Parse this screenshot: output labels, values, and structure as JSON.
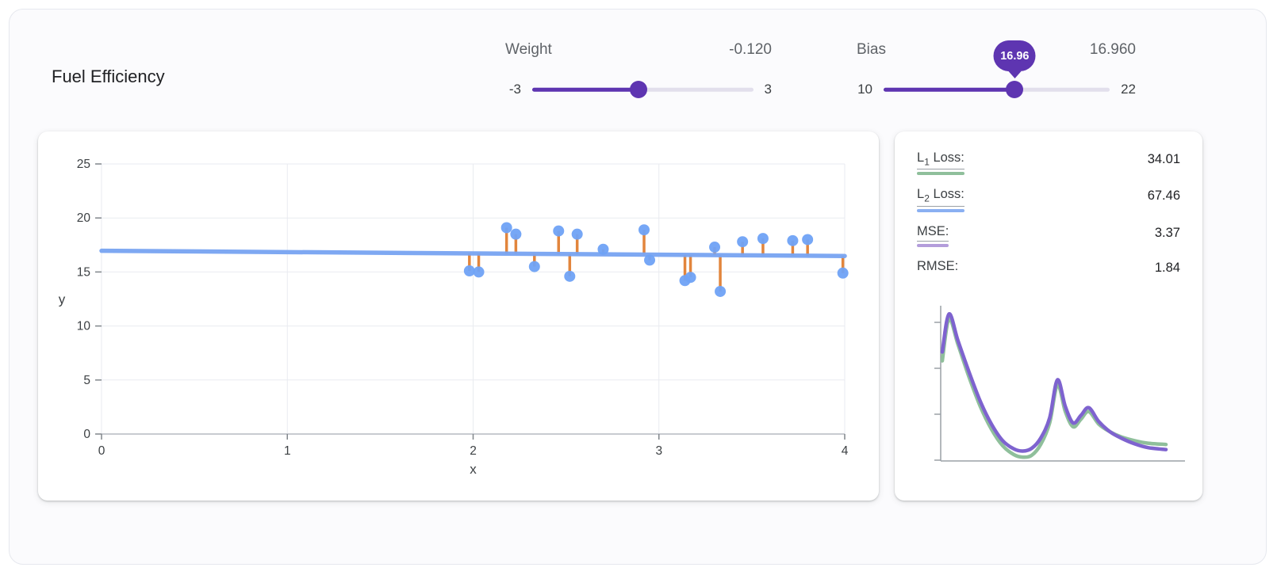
{
  "app": {
    "title": "Fuel Efficiency"
  },
  "theme": {
    "accent": "#5e35b1",
    "slider_track": "#e2dfec",
    "card_bg": "#ffffff"
  },
  "controls": {
    "weight": {
      "label": "Weight",
      "display": "-0.120",
      "value": -0.12,
      "min": -3,
      "max": 3,
      "min_label": "-3",
      "max_label": "3"
    },
    "bias": {
      "label": "Bias",
      "display": "16.960",
      "value": 16.96,
      "min": 10,
      "max": 22,
      "min_label": "10",
      "max_label": "22",
      "bubble": "16.96"
    }
  },
  "loss_panel": {
    "rows": [
      {
        "pre": "L",
        "sub": "1",
        "post": " Loss:",
        "value": "34.01",
        "swatch": "#8fbf9b",
        "underline": true
      },
      {
        "pre": "L",
        "sub": "2",
        "post": " Loss:",
        "value": "67.46",
        "swatch": "#8ab0f2",
        "underline": true
      },
      {
        "pre": "MSE:",
        "sub": "",
        "post": "",
        "value": "3.37",
        "swatch": "#b39ddb",
        "underline": true
      },
      {
        "pre": "RMSE:",
        "sub": "",
        "post": "",
        "value": "1.84",
        "swatch": null,
        "underline": false
      }
    ]
  },
  "chart_data": [
    {
      "name": "model-fit-plot",
      "type": "scatter",
      "title": "",
      "xlabel": "x",
      "ylabel": "y",
      "xlim": [
        0,
        4
      ],
      "ylim": [
        0,
        25
      ],
      "xticks": [
        0,
        1,
        2,
        3,
        4
      ],
      "yticks": [
        0,
        5,
        10,
        15,
        20,
        25
      ],
      "model_line": {
        "weight": -0.12,
        "bias": 16.96
      },
      "points": [
        [
          1.98,
          15.1
        ],
        [
          2.03,
          15.0
        ],
        [
          2.18,
          19.1
        ],
        [
          2.23,
          18.5
        ],
        [
          2.33,
          15.5
        ],
        [
          2.46,
          18.8
        ],
        [
          2.52,
          14.6
        ],
        [
          2.56,
          18.5
        ],
        [
          2.7,
          17.1
        ],
        [
          2.92,
          18.9
        ],
        [
          2.95,
          16.1
        ],
        [
          3.14,
          14.2
        ],
        [
          3.17,
          14.5
        ],
        [
          3.3,
          17.3
        ],
        [
          3.33,
          13.2
        ],
        [
          3.45,
          17.8
        ],
        [
          3.56,
          18.1
        ],
        [
          3.72,
          17.9
        ],
        [
          3.8,
          18.0
        ],
        [
          3.99,
          14.9
        ]
      ],
      "colors": {
        "point": "#6fa2f5",
        "line": "#78a4f2",
        "residual": "#e2853c",
        "grid": "#e9ebf0",
        "axis": "#b6bac1",
        "tick": "#80868b",
        "tick_label": "#3c4043",
        "axis_label": "#3c4043"
      }
    },
    {
      "name": "loss-curves",
      "type": "line",
      "xlim": [
        0,
        1
      ],
      "ylim": [
        0,
        12
      ],
      "axis_color": "#9aa0a6",
      "legend_position": "none",
      "x": [
        0,
        0.03,
        0.07,
        0.12,
        0.17,
        0.22,
        0.27,
        0.32,
        0.36,
        0.4,
        0.44,
        0.48,
        0.515,
        0.55,
        0.585,
        0.62,
        0.655,
        0.7,
        0.75,
        0.8,
        0.86,
        0.92,
        1.0
      ],
      "series": [
        {
          "name": "L1 Loss",
          "color": "#8fbf9b",
          "values": [
            7.9,
            11.2,
            9.2,
            6.6,
            4.3,
            2.5,
            1.2,
            0.5,
            0.3,
            0.45,
            1.3,
            3.0,
            6.0,
            3.9,
            2.7,
            3.3,
            3.9,
            2.9,
            2.3,
            1.9,
            1.6,
            1.4,
            1.3
          ]
        },
        {
          "name": "MSE",
          "color": "#7e63cf",
          "values": [
            8.6,
            11.6,
            9.5,
            7.0,
            4.7,
            2.9,
            1.6,
            0.95,
            0.78,
            1.0,
            1.8,
            3.4,
            6.4,
            4.3,
            3.0,
            3.6,
            4.2,
            3.1,
            2.3,
            1.8,
            1.35,
            1.05,
            0.9
          ]
        }
      ]
    }
  ]
}
